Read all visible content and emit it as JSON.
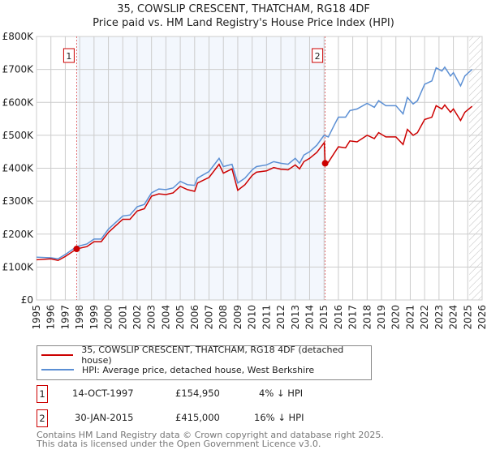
{
  "chart_data": {
    "type": "line",
    "title": "35, COWSLIP CRESCENT, THATCHAM, RG18 4DF",
    "subtitle": "Price paid vs. HM Land Registry's House Price Index (HPI)",
    "xlim": [
      1995,
      2026
    ],
    "ylim": [
      0,
      800000
    ],
    "x_ticks": [
      "1995",
      "1996",
      "1997",
      "1998",
      "1999",
      "2000",
      "2001",
      "2002",
      "2003",
      "2004",
      "2005",
      "2006",
      "2007",
      "2008",
      "2009",
      "2010",
      "2011",
      "2012",
      "2013",
      "2014",
      "2015",
      "2016",
      "2017",
      "2018",
      "2019",
      "2020",
      "2021",
      "2022",
      "2023",
      "2024",
      "2025",
      "2026"
    ],
    "y_ticks": [
      {
        "v": 0,
        "l": "£0"
      },
      {
        "v": 100000,
        "l": "£100K"
      },
      {
        "v": 200000,
        "l": "£200K"
      },
      {
        "v": 300000,
        "l": "£300K"
      },
      {
        "v": 400000,
        "l": "£400K"
      },
      {
        "v": 500000,
        "l": "£500K"
      },
      {
        "v": 600000,
        "l": "£600K"
      },
      {
        "v": 700000,
        "l": "£700K"
      },
      {
        "v": 800000,
        "l": "£800K"
      }
    ],
    "grid": true,
    "shaded_range": [
      1997.79,
      2015.08
    ],
    "forecast_hatch_from": 2025.1,
    "series": [
      {
        "name": "35, COWSLIP CRESCENT, THATCHAM, RG18 4DF (detached house)",
        "color": "#cc0000",
        "x": [
          1995,
          1996,
          1996.5,
          1997,
          1997.79,
          1998.5,
          1999,
          1999.5,
          2000,
          2000.5,
          2001,
          2001.5,
          2002,
          2002.5,
          2003,
          2003.5,
          2004,
          2004.5,
          2005,
          2005.5,
          2006,
          2006.2,
          2007,
          2007.7,
          2008,
          2008.6,
          2009,
          2009.5,
          2010,
          2010.3,
          2011,
          2011.5,
          2012,
          2012.5,
          2013,
          2013.3,
          2013.6,
          2014,
          2014.5,
          2015.02,
          2015.08,
          2015.3,
          2015.7,
          2016,
          2016.5,
          2016.8,
          2017.3,
          2018,
          2018.5,
          2018.8,
          2019.3,
          2020,
          2020.5,
          2020.8,
          2021.2,
          2021.5,
          2022,
          2022.5,
          2022.8,
          2023.2,
          2023.4,
          2023.8,
          2024,
          2024.5,
          2024.8,
          2025.3
        ],
        "y": [
          122,
          125,
          120,
          132,
          155,
          162,
          177,
          177,
          205,
          225,
          245,
          245,
          270,
          277,
          315,
          322,
          320,
          325,
          345,
          335,
          330,
          355,
          372,
          412,
          385,
          398,
          333,
          350,
          378,
          388,
          392,
          402,
          397,
          395,
          410,
          398,
          420,
          430,
          448,
          478,
          415,
          418,
          445,
          465,
          462,
          483,
          480,
          500,
          490,
          508,
          495,
          495,
          472,
          518,
          500,
          508,
          548,
          555,
          590,
          580,
          592,
          570,
          580,
          545,
          570,
          588
        ]
      },
      {
        "name": "HPI: Average price, detached house, West Berkshire",
        "color": "#5b8fd4",
        "x": [
          1995,
          1996,
          1996.5,
          1997,
          1997.79,
          1998.5,
          1999,
          1999.5,
          2000,
          2000.5,
          2001,
          2001.5,
          2002,
          2002.5,
          2003,
          2003.5,
          2004,
          2004.5,
          2005,
          2005.5,
          2006,
          2006.2,
          2007,
          2007.7,
          2008,
          2008.6,
          2009,
          2009.5,
          2010,
          2010.3,
          2011,
          2011.5,
          2012,
          2012.5,
          2013,
          2013.3,
          2013.6,
          2014,
          2014.5,
          2015,
          2015.3,
          2015.7,
          2016,
          2016.5,
          2016.8,
          2017.3,
          2018,
          2018.5,
          2018.8,
          2019.3,
          2020,
          2020.5,
          2020.8,
          2021.2,
          2021.5,
          2022,
          2022.5,
          2022.8,
          2023.2,
          2023.4,
          2023.8,
          2024,
          2024.5,
          2024.8,
          2025.3
        ],
        "y": [
          130,
          128,
          125,
          138,
          162,
          170,
          185,
          185,
          215,
          235,
          255,
          258,
          283,
          290,
          325,
          337,
          335,
          340,
          360,
          350,
          348,
          370,
          390,
          430,
          405,
          412,
          355,
          370,
          395,
          405,
          410,
          420,
          415,
          412,
          430,
          415,
          440,
          450,
          470,
          500,
          495,
          530,
          555,
          555,
          575,
          580,
          597,
          585,
          605,
          590,
          590,
          565,
          615,
          595,
          605,
          655,
          665,
          705,
          695,
          707,
          680,
          690,
          650,
          680,
          700
        ]
      }
    ],
    "y_units": "£ thousands",
    "sales": [
      {
        "label": "1",
        "x": 1997.79,
        "y": 154.95
      },
      {
        "label": "2",
        "x": 2015.08,
        "y": 415
      }
    ]
  },
  "legend": {
    "items": [
      "35, COWSLIP CRESCENT, THATCHAM, RG18 4DF (detached house)",
      "HPI: Average price, detached house, West Berkshire"
    ]
  },
  "transactions": [
    {
      "num": "1",
      "date": "14-OCT-1997",
      "price": "£154,950",
      "hpi": "4% ↓ HPI"
    },
    {
      "num": "2",
      "date": "30-JAN-2015",
      "price": "£415,000",
      "hpi": "16% ↓ HPI"
    }
  ],
  "footer": {
    "line1": "Contains HM Land Registry data © Crown copyright and database right 2025.",
    "line2": "This data is licensed under the Open Government Licence v3.0."
  }
}
